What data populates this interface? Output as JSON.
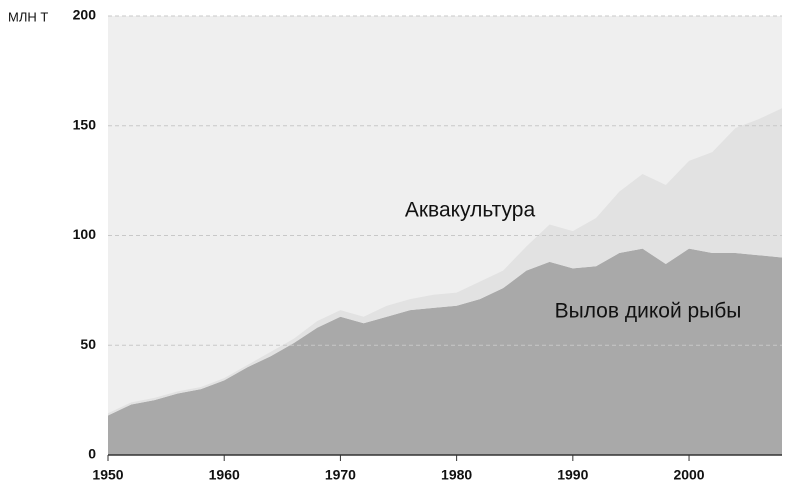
{
  "chart_data": {
    "type": "stacked-area",
    "y_label": "МЛН Т",
    "x": [
      1950,
      1952,
      1954,
      1956,
      1958,
      1960,
      1962,
      1964,
      1966,
      1968,
      1970,
      1972,
      1974,
      1976,
      1978,
      1980,
      1982,
      1984,
      1986,
      1988,
      1990,
      1992,
      1994,
      1996,
      1998,
      2000,
      2002,
      2004,
      2006,
      2008
    ],
    "series": [
      {
        "name": "Вылов дикой рыбы",
        "color": "#a9a9a9",
        "values": [
          18,
          23,
          25,
          28,
          30,
          34,
          40,
          45,
          51,
          58,
          63,
          60,
          63,
          66,
          67,
          68,
          71,
          76,
          84,
          88,
          85,
          86,
          92,
          94,
          87,
          94,
          92,
          92,
          91,
          90
        ]
      },
      {
        "name": "Аквакультура",
        "color": "#e2e2e2",
        "values": [
          1,
          1,
          1,
          1,
          1,
          1,
          1,
          2,
          2,
          3,
          3,
          3,
          5,
          5,
          6,
          6,
          8,
          8,
          11,
          17,
          17,
          22,
          28,
          34,
          36,
          40,
          46,
          57,
          62,
          68
        ]
      }
    ],
    "xlim": [
      1950,
      2008
    ],
    "ylim": [
      0,
      200
    ],
    "xticks": [
      1950,
      1960,
      1970,
      1980,
      1990,
      2000
    ],
    "yticks": [
      0,
      50,
      100,
      150,
      200
    ],
    "grid": true
  }
}
